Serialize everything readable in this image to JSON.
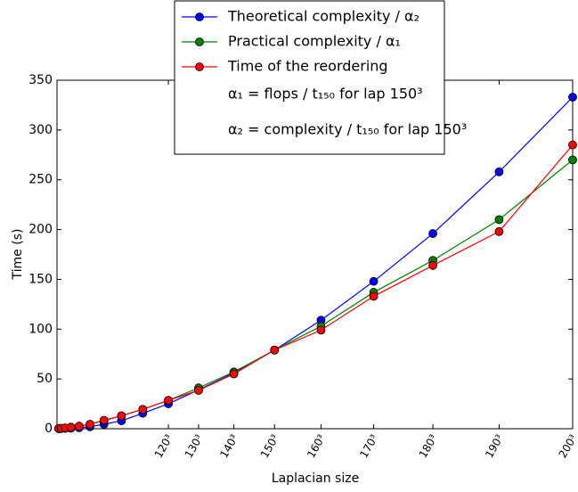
{
  "chart_data": {
    "type": "line",
    "x_label": "Laplacian size",
    "y_label": "Time (s)",
    "x": [
      27000,
      64000,
      125000,
      216000,
      343000,
      512000,
      729000,
      1000000,
      1331000,
      1728000,
      2197000,
      2744000,
      3375000,
      4096000,
      4913000,
      5832000,
      6859000,
      8000000
    ],
    "series": [
      {
        "name": "Theoretical complexity / α₂",
        "color": "#0000ff",
        "values": [
          0.05,
          0.1,
          0.3,
          0.5,
          1,
          2,
          4.5,
          8,
          15.5,
          25,
          39,
          56,
          79,
          109,
          148,
          196,
          258,
          333
        ]
      },
      {
        "name": "Practical complexity / α₁",
        "color": "#008000",
        "values": [
          0.2,
          0.4,
          0.8,
          1.5,
          2.5,
          4.5,
          8,
          13,
          19.5,
          28.5,
          41,
          57,
          79,
          103,
          137,
          169,
          210,
          270
        ]
      },
      {
        "name": "Time of the reordering",
        "color": "#ff0000",
        "values": [
          0.2,
          0.4,
          0.8,
          1.5,
          2.5,
          4.5,
          8.5,
          13,
          19.5,
          28.5,
          38.5,
          55,
          79,
          99,
          133,
          164,
          198,
          285
        ]
      }
    ],
    "annotations": [
      "α₁ = flops / t₁₅₀ for lap 150³",
      "α₂ = complexity / t₁₅₀ for lap 150³"
    ],
    "xlim": [
      0,
      8000000
    ],
    "ylim": [
      0,
      350
    ],
    "xticks": [
      {
        "value": 1728000,
        "label": "120³"
      },
      {
        "value": 2197000,
        "label": "130³"
      },
      {
        "value": 2744000,
        "label": "140³"
      },
      {
        "value": 3375000,
        "label": "150³"
      },
      {
        "value": 4096000,
        "label": "160³"
      },
      {
        "value": 4913000,
        "label": "170³"
      },
      {
        "value": 5832000,
        "label": "180³"
      },
      {
        "value": 6859000,
        "label": "190³"
      },
      {
        "value": 8000000,
        "label": "200³"
      }
    ],
    "yticks": [
      0,
      50,
      100,
      150,
      200,
      250,
      300,
      350
    ],
    "legend": "top-center"
  }
}
